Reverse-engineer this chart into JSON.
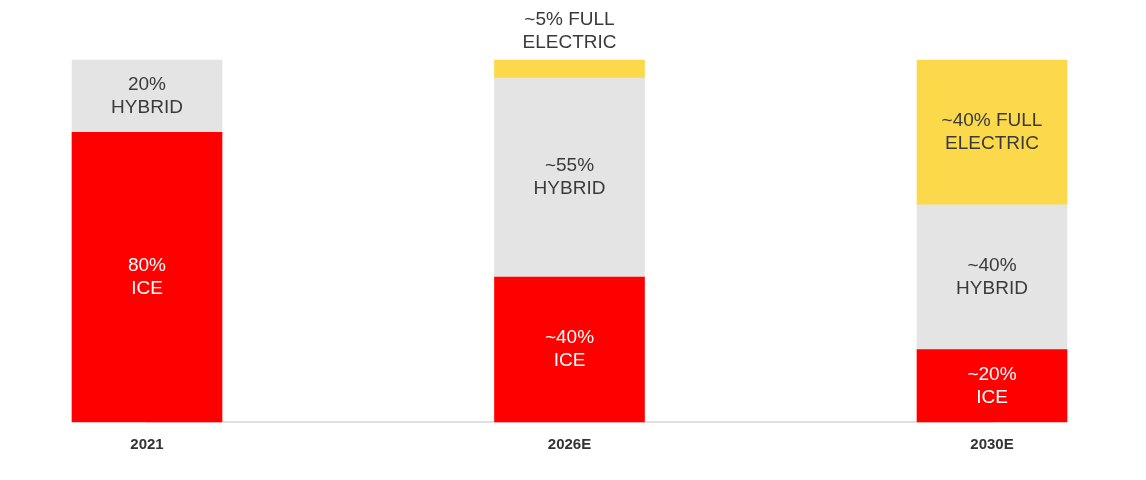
{
  "chart_data": {
    "type": "bar",
    "stacked": true,
    "categories": [
      "2021",
      "2026E",
      "2030E"
    ],
    "ylim": [
      0,
      100
    ],
    "series": [
      {
        "color": "#fe0000",
        "values": [
          80,
          40,
          20
        ],
        "value_labels": [
          "80%\nICE",
          "~40%\nICE",
          "~20%\nICE"
        ]
      },
      {
        "color": "#e4e4e4",
        "values": [
          20,
          55,
          40
        ],
        "value_labels": [
          "20%\nHYBRID",
          "~55%\nHYBRID",
          "~40%\nHYBRID"
        ]
      },
      {
        "color": "#fcd84b",
        "values": [
          null,
          5,
          40
        ],
        "value_labels": [
          null,
          "~5% FULL\nELECTRIC",
          "~40% FULL\nELECTRIC"
        ]
      }
    ],
    "grid": false,
    "legend": false
  }
}
